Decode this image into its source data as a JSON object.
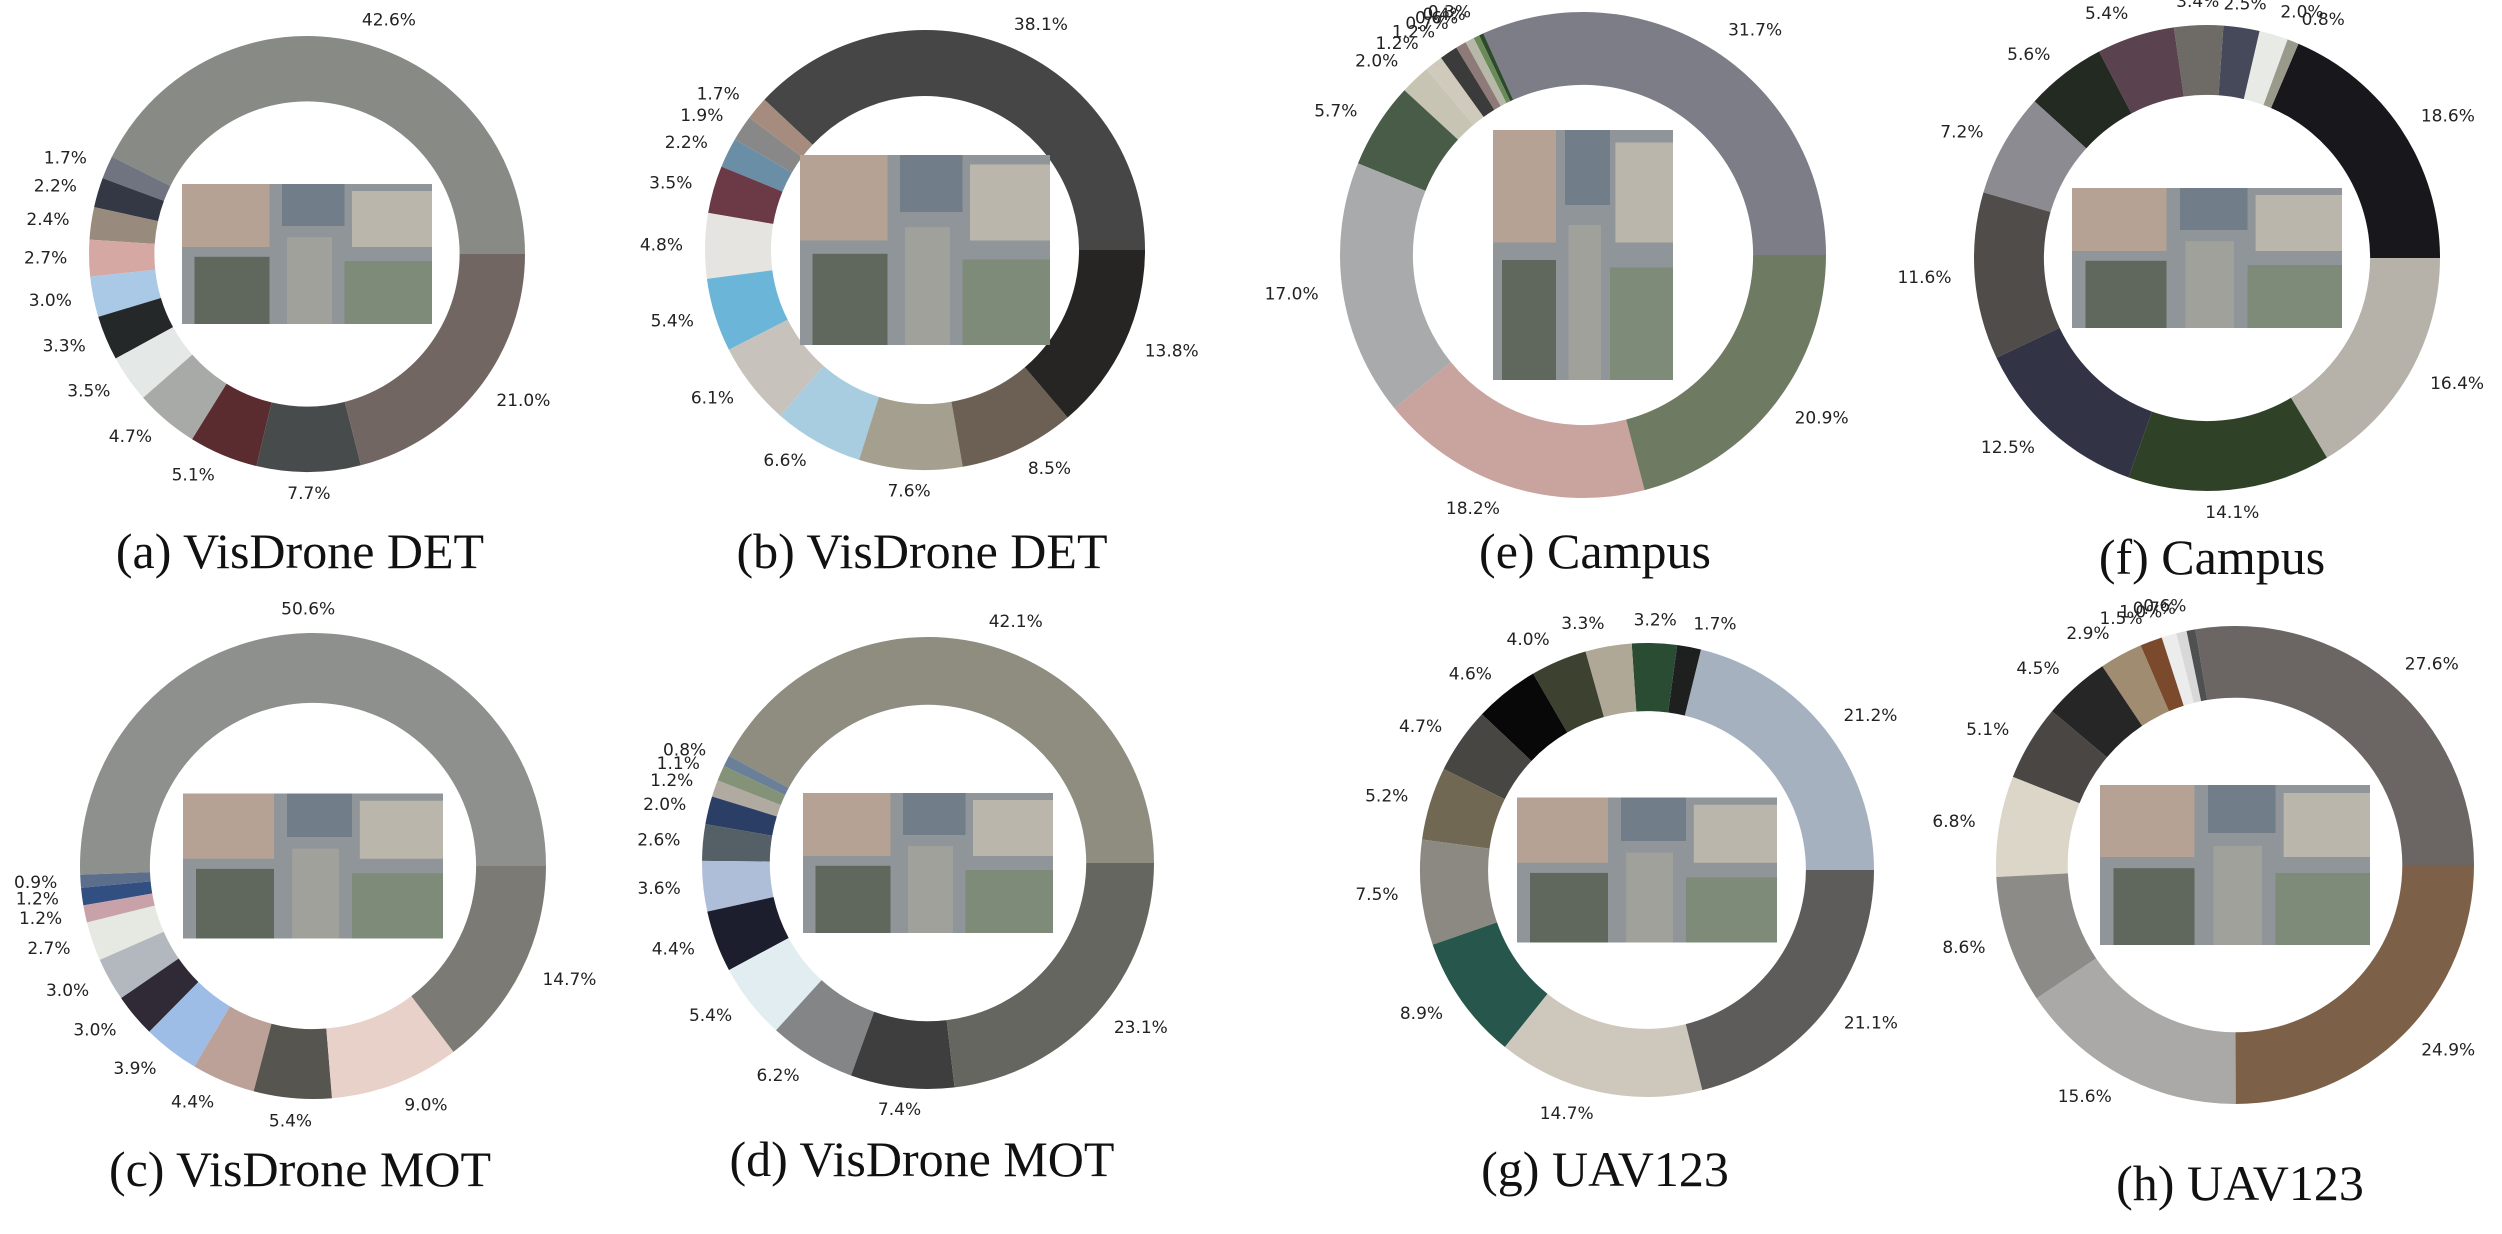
{
  "chart_data": [
    {
      "type": "pie",
      "caption": "(a) VisDrone DET",
      "thumbnail": "aerial view of a busy urban street with parked cars",
      "labels": [
        "42.6%",
        "1.7%",
        "2.2%",
        "2.4%",
        "2.7%",
        "3.0%",
        "3.3%",
        "3.5%",
        "4.7%",
        "5.1%",
        "7.7%",
        "21.0%"
      ],
      "values": [
        42.6,
        1.7,
        2.2,
        2.4,
        2.7,
        3.0,
        3.3,
        3.5,
        4.7,
        5.1,
        7.7,
        21.0
      ],
      "colors": [
        "#888a85",
        "#6f7480",
        "#343845",
        "#988a7c",
        "#d6a8a4",
        "#a9c9e6",
        "#242829",
        "#e4e9e7",
        "#a8aaa7",
        "#5a2c30",
        "#484b4c",
        "#716662"
      ]
    },
    {
      "type": "pie",
      "caption": "(b) VisDrone DET",
      "thumbnail": "aerial view of intersection with blue rooftops",
      "labels": [
        "38.1%",
        "1.7%",
        "1.9%",
        "2.2%",
        "3.5%",
        "4.8%",
        "5.4%",
        "6.1%",
        "6.6%",
        "7.6%",
        "8.5%",
        "13.8%"
      ],
      "values": [
        38.1,
        1.7,
        1.9,
        2.2,
        3.5,
        4.8,
        5.4,
        6.1,
        6.6,
        7.6,
        8.5,
        13.8
      ],
      "colors": [
        "#464646",
        "#a58c7f",
        "#888888",
        "#6a8ea6",
        "#6c3a46",
        "#e6e4e1",
        "#6bb6d8",
        "#c7c3bc",
        "#a9cde0",
        "#a59f90",
        "#6b6053",
        "#262524"
      ]
    },
    {
      "type": "pie",
      "caption": "(e) Campus",
      "thumbnail": "overhead view of campus roundabout",
      "labels": [
        "31.7%",
        "0.3%",
        "0.4%",
        "0.6%",
        "0.7%",
        "1.2%",
        "1.2%",
        "2.0%",
        "5.7%",
        "17.0%",
        "18.2%",
        "20.9%"
      ],
      "values": [
        31.7,
        0.3,
        0.4,
        0.6,
        0.7,
        1.2,
        1.2,
        2.0,
        5.7,
        17.0,
        18.2,
        20.9
      ],
      "colors": [
        "#7d7d87",
        "#2e4a2c",
        "#6b8a5a",
        "#b8b8a8",
        "#8e7a78",
        "#3b3b3b",
        "#d0cabd",
        "#c8c4b4",
        "#485c47",
        "#a8aaab",
        "#c9a39d",
        "#6f7a62"
      ]
    },
    {
      "type": "pie",
      "caption": "(f) Campus",
      "thumbnail": "overhead view of campus courtyard and buildings",
      "labels": [
        "18.6%",
        "0.8%",
        "2.0%",
        "2.5%",
        "3.4%",
        "5.4%",
        "5.6%",
        "7.2%",
        "11.6%",
        "12.5%",
        "14.1%",
        "16.4%"
      ],
      "values": [
        18.6,
        0.8,
        2.0,
        2.5,
        3.4,
        5.4,
        5.6,
        7.2,
        11.6,
        12.5,
        14.1,
        16.4
      ],
      "colors": [
        "#17171c",
        "#9a9a8c",
        "#e8ebe5",
        "#454959",
        "#6e6a66",
        "#5a434e",
        "#232a21",
        "#8c8b92",
        "#4f4c4a",
        "#323446",
        "#2f4227",
        "#b6b2aa"
      ]
    },
    {
      "type": "pie",
      "caption": "(c) VisDrone MOT",
      "thumbnail": "aerial view of a lot between buildings with vehicles",
      "labels": [
        "50.6%",
        "0.9%",
        "1.2%",
        "1.2%",
        "2.7%",
        "3.0%",
        "3.0%",
        "3.9%",
        "4.4%",
        "5.4%",
        "9.0%",
        "14.7%"
      ],
      "values": [
        50.6,
        0.9,
        1.2,
        1.2,
        2.7,
        3.0,
        3.0,
        3.9,
        4.4,
        5.4,
        9.0,
        14.7
      ],
      "colors": [
        "#8e908d",
        "#5b6e8c",
        "#324f82",
        "#c8a2a8",
        "#e6e8e2",
        "#b2b8be",
        "#2f2a36",
        "#9dbde6",
        "#bca198",
        "#565550",
        "#e8d1c8",
        "#7b7a74"
      ]
    },
    {
      "type": "pie",
      "caption": "(d) VisDrone MOT",
      "thumbnail": "aerial view of parking lot full of cars",
      "labels": [
        "42.1%",
        "0.8%",
        "1.1%",
        "1.2%",
        "2.0%",
        "2.6%",
        "3.6%",
        "4.4%",
        "5.4%",
        "6.2%",
        "7.4%",
        "23.1%"
      ],
      "values": [
        42.1,
        0.8,
        1.1,
        1.2,
        2.0,
        2.6,
        3.6,
        4.4,
        5.4,
        6.2,
        7.4,
        23.1
      ],
      "colors": [
        "#8f8c80",
        "#6a7f98",
        "#849277",
        "#b0aaa0",
        "#2b3f66",
        "#555f66",
        "#aebdd8",
        "#1c1e2e",
        "#e1edf1",
        "#838586",
        "#3e3e3e",
        "#666660"
      ]
    },
    {
      "type": "pie",
      "caption": "(g) UAV123",
      "thumbnail": "aerial view of modern building and curved bridge over water",
      "labels": [
        "21.2%",
        "1.7%",
        "3.2%",
        "3.3%",
        "4.0%",
        "4.6%",
        "4.7%",
        "5.2%",
        "7.5%",
        "8.9%",
        "14.7%",
        "21.1%"
      ],
      "values": [
        21.2,
        1.7,
        3.2,
        3.3,
        4.0,
        4.6,
        4.7,
        5.2,
        7.5,
        8.9,
        14.7,
        21.1
      ],
      "colors": [
        "#a6b1c0",
        "#1e2020",
        "#294c33",
        "#b0a896",
        "#3d4130",
        "#070807",
        "#474643",
        "#706852",
        "#8c8882",
        "#27574c",
        "#cdc7bc",
        "#5d5c5a"
      ]
    },
    {
      "type": "pie",
      "caption": "(h) UAV123",
      "thumbnail": "aerial view of construction site with road",
      "labels": [
        "27.6%",
        "0.6%",
        "0.7%",
        "1.0%",
        "1.5%",
        "2.9%",
        "4.5%",
        "5.1%",
        "6.8%",
        "8.6%",
        "15.6%",
        "24.9%"
      ],
      "values": [
        27.6,
        0.6,
        0.7,
        1.0,
        1.5,
        2.9,
        4.5,
        5.1,
        6.8,
        8.6,
        15.6,
        24.9
      ],
      "colors": [
        "#6b6664",
        "#4e5052",
        "#d8d8d8",
        "#ececec",
        "#7b4a2c",
        "#a08c70",
        "#262626",
        "#4a4643",
        "#dcd6c8",
        "#8d8b88",
        "#aaa9a7",
        "#7d6048"
      ]
    }
  ]
}
